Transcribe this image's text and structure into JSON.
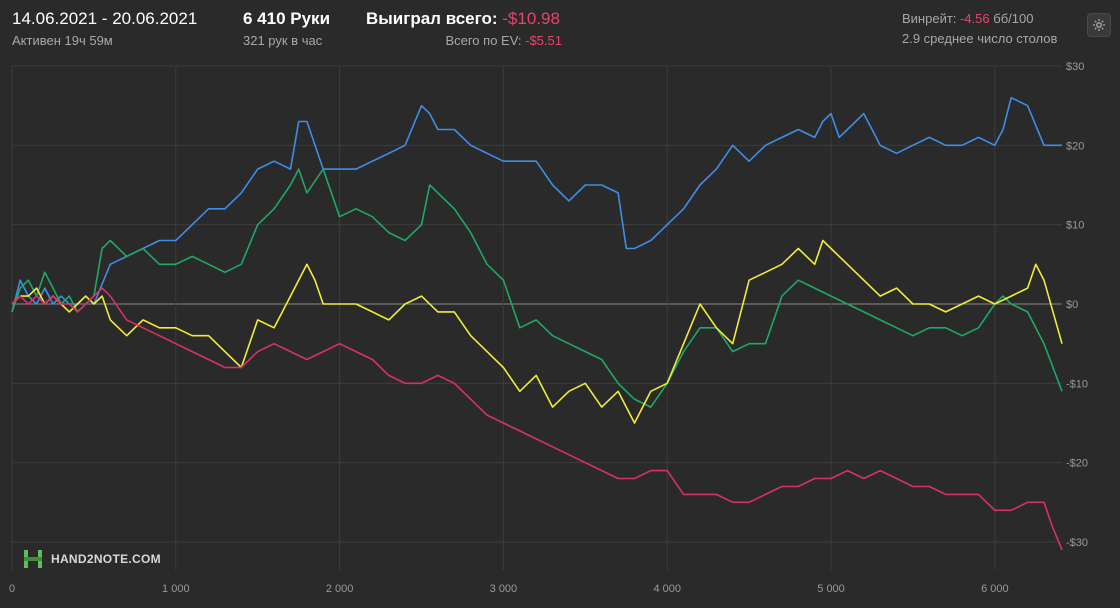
{
  "header": {
    "date_range": "14.06.2021 - 20.06.2021",
    "active_time": "Активен 19ч 59м",
    "hands": "6 410 Руки",
    "hands_per_hour": "321 рук в час",
    "won_label": "Выиграл всего: ",
    "won_value": "-$10.98",
    "ev_label": "Всего по EV: ",
    "ev_value": "-$5.51",
    "winrate_label": "Винрейт: ",
    "winrate_value": "-4.56",
    "winrate_unit": " бб/100",
    "avg_tables": "2.9 среднее число столов"
  },
  "logo": {
    "text": "HAND2NOTE.COM"
  },
  "icons": {
    "settings": "gear-icon",
    "logo": "hand2note-logo-icon"
  },
  "colors": {
    "background": "#2a2a2a",
    "negative": "#e8436e",
    "blue": "#3d8ee8",
    "green": "#1fa866",
    "yellow": "#f0ec3c",
    "pink": "#d8306a",
    "grid": "#3c3c3c",
    "zero_line": "#8a8a8a"
  },
  "chart_data": {
    "type": "line",
    "xlim": [
      0,
      6410
    ],
    "ylim": [
      -31,
      30
    ],
    "x_ticks": [
      0,
      1000,
      2000,
      3000,
      4000,
      5000,
      6000
    ],
    "x_tick_labels": [
      "0",
      "1 000",
      "2 000",
      "3 000",
      "4 000",
      "5 000",
      "6 000"
    ],
    "y_ticks": [
      30,
      20,
      10,
      0,
      -10,
      -20,
      -30
    ],
    "y_tick_labels": [
      "$30",
      "$20",
      "$10",
      "$0",
      "-$10",
      "-$20",
      "-$30"
    ],
    "grid": true,
    "series": [
      {
        "color": "#3d8ee8",
        "x": [
          0,
          50,
          100,
          150,
          200,
          250,
          300,
          350,
          400,
          450,
          500,
          600,
          700,
          800,
          900,
          1000,
          1100,
          1200,
          1300,
          1400,
          1500,
          1600,
          1700,
          1750,
          1800,
          1900,
          2000,
          2100,
          2200,
          2300,
          2400,
          2500,
          2550,
          2600,
          2700,
          2800,
          2900,
          3000,
          3100,
          3200,
          3300,
          3400,
          3500,
          3600,
          3700,
          3750,
          3800,
          3900,
          4000,
          4100,
          4200,
          4300,
          4400,
          4500,
          4600,
          4700,
          4800,
          4900,
          4950,
          5000,
          5050,
          5100,
          5200,
          5300,
          5400,
          5500,
          5600,
          5700,
          5800,
          5900,
          6000,
          6050,
          6100,
          6200,
          6300,
          6410
        ],
        "y": [
          -1,
          3,
          1,
          0,
          2,
          0,
          1,
          0,
          0,
          1,
          0,
          5,
          6,
          7,
          8,
          8,
          10,
          12,
          12,
          14,
          17,
          18,
          17,
          23,
          23,
          17,
          17,
          17,
          18,
          19,
          20,
          25,
          24,
          22,
          22,
          20,
          19,
          18,
          18,
          18,
          15,
          13,
          15,
          15,
          14,
          7,
          7,
          8,
          10,
          12,
          15,
          17,
          20,
          18,
          20,
          21,
          22,
          21,
          23,
          24,
          21,
          22,
          24,
          20,
          19,
          20,
          21,
          20,
          20,
          21,
          20,
          22,
          26,
          25,
          20,
          20
        ]
      },
      {
        "color": "#1fa866",
        "x": [
          0,
          50,
          100,
          150,
          200,
          250,
          300,
          350,
          400,
          450,
          500,
          550,
          600,
          700,
          800,
          900,
          1000,
          1100,
          1200,
          1300,
          1400,
          1500,
          1600,
          1700,
          1750,
          1800,
          1900,
          2000,
          2100,
          2200,
          2300,
          2400,
          2500,
          2550,
          2600,
          2700,
          2800,
          2900,
          3000,
          3100,
          3200,
          3300,
          3400,
          3500,
          3600,
          3700,
          3750,
          3800,
          3900,
          4000,
          4100,
          4200,
          4300,
          4400,
          4500,
          4600,
          4700,
          4800,
          4900,
          5000,
          5100,
          5200,
          5300,
          5400,
          5500,
          5600,
          5700,
          5800,
          5900,
          6000,
          6050,
          6100,
          6200,
          6300,
          6410
        ],
        "y": [
          -1,
          2,
          3,
          1,
          4,
          2,
          0,
          1,
          -1,
          0,
          1,
          7,
          8,
          6,
          7,
          5,
          5,
          6,
          5,
          4,
          5,
          10,
          12,
          15,
          17,
          14,
          17,
          11,
          12,
          11,
          9,
          8,
          10,
          15,
          14,
          12,
          9,
          5,
          3,
          -3,
          -2,
          -4,
          -5,
          -6,
          -7,
          -10,
          -11,
          -12,
          -13,
          -10,
          -6,
          -3,
          -3,
          -6,
          -5,
          -5,
          1,
          3,
          2,
          1,
          0,
          -1,
          -2,
          -3,
          -4,
          -3,
          -3,
          -4,
          -3,
          0,
          1,
          0,
          -1,
          -5,
          -11
        ]
      },
      {
        "color": "#f0ec3c",
        "x": [
          0,
          50,
          100,
          150,
          200,
          250,
          300,
          350,
          400,
          450,
          500,
          550,
          600,
          700,
          800,
          900,
          1000,
          1100,
          1200,
          1300,
          1400,
          1500,
          1600,
          1700,
          1800,
          1850,
          1900,
          2000,
          2100,
          2200,
          2300,
          2400,
          2500,
          2600,
          2700,
          2800,
          2900,
          3000,
          3100,
          3200,
          3300,
          3400,
          3500,
          3600,
          3700,
          3800,
          3900,
          4000,
          4100,
          4200,
          4300,
          4400,
          4500,
          4600,
          4700,
          4800,
          4900,
          4950,
          5000,
          5100,
          5200,
          5300,
          5400,
          5500,
          5600,
          5700,
          5800,
          5900,
          6000,
          6100,
          6200,
          6250,
          6300,
          6410
        ],
        "y": [
          0,
          1,
          1,
          2,
          0,
          1,
          0,
          -1,
          0,
          1,
          0,
          1,
          -2,
          -4,
          -2,
          -3,
          -3,
          -4,
          -4,
          -6,
          -8,
          -2,
          -3,
          1,
          5,
          3,
          0,
          0,
          0,
          -1,
          -2,
          0,
          1,
          -1,
          -1,
          -4,
          -6,
          -8,
          -11,
          -9,
          -13,
          -11,
          -10,
          -13,
          -11,
          -15,
          -11,
          -10,
          -5,
          0,
          -3,
          -5,
          3,
          4,
          5,
          7,
          5,
          8,
          7,
          5,
          3,
          1,
          2,
          0,
          0,
          -1,
          0,
          1,
          0,
          1,
          2,
          5,
          3,
          -5
        ]
      },
      {
        "color": "#d8306a",
        "x": [
          0,
          50,
          100,
          150,
          200,
          250,
          300,
          350,
          400,
          450,
          500,
          550,
          600,
          700,
          800,
          900,
          1000,
          1100,
          1200,
          1300,
          1400,
          1500,
          1600,
          1700,
          1800,
          1900,
          2000,
          2100,
          2200,
          2300,
          2400,
          2500,
          2600,
          2700,
          2800,
          2900,
          3000,
          3100,
          3200,
          3300,
          3400,
          3500,
          3600,
          3700,
          3800,
          3900,
          4000,
          4100,
          4200,
          4300,
          4400,
          4500,
          4600,
          4700,
          4800,
          4900,
          5000,
          5100,
          5200,
          5300,
          5400,
          5500,
          5600,
          5700,
          5800,
          5900,
          6000,
          6100,
          6200,
          6300,
          6350,
          6410
        ],
        "y": [
          0,
          1,
          0,
          1,
          0,
          1,
          0,
          0,
          -1,
          0,
          1,
          2,
          1,
          -2,
          -3,
          -4,
          -5,
          -6,
          -7,
          -8,
          -8,
          -6,
          -5,
          -6,
          -7,
          -6,
          -5,
          -6,
          -7,
          -9,
          -10,
          -10,
          -9,
          -10,
          -12,
          -14,
          -15,
          -16,
          -17,
          -18,
          -19,
          -20,
          -21,
          -22,
          -22,
          -21,
          -21,
          -24,
          -24,
          -24,
          -25,
          -25,
          -24,
          -23,
          -23,
          -22,
          -22,
          -21,
          -22,
          -21,
          -22,
          -23,
          -23,
          -24,
          -24,
          -24,
          -26,
          -26,
          -25,
          -25,
          -28,
          -31
        ]
      }
    ]
  }
}
